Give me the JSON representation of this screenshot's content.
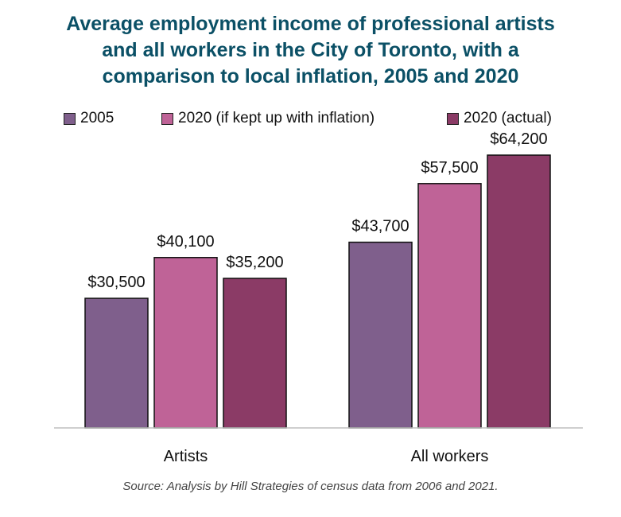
{
  "chart_data": {
    "type": "bar",
    "title_lines": [
      "Average employment income of professional artists",
      "and all workers in the City of Toronto, with a",
      "comparison to local inflation, 2005 and 2020"
    ],
    "categories": [
      "Artists",
      "All workers"
    ],
    "series": [
      {
        "name": "2005",
        "color": "#7f5f8c",
        "values": [
          30500,
          43700
        ],
        "labels": [
          "$30,500",
          "$43,700"
        ]
      },
      {
        "name": "2020 (if kept up with inflation)",
        "color": "#bf6397",
        "values": [
          40100,
          57500
        ],
        "labels": [
          "$40,100",
          "$57,500"
        ]
      },
      {
        "name": "2020 (actual)",
        "color": "#8b3b66",
        "values": [
          35200,
          64200
        ],
        "labels": [
          "$35,200",
          "$64,200"
        ]
      }
    ],
    "ylim": [
      0,
      73000
    ],
    "grid": false,
    "legend_position": "top",
    "source": "Source: Analysis by Hill Strategies of census data from 2006 and 2021."
  }
}
